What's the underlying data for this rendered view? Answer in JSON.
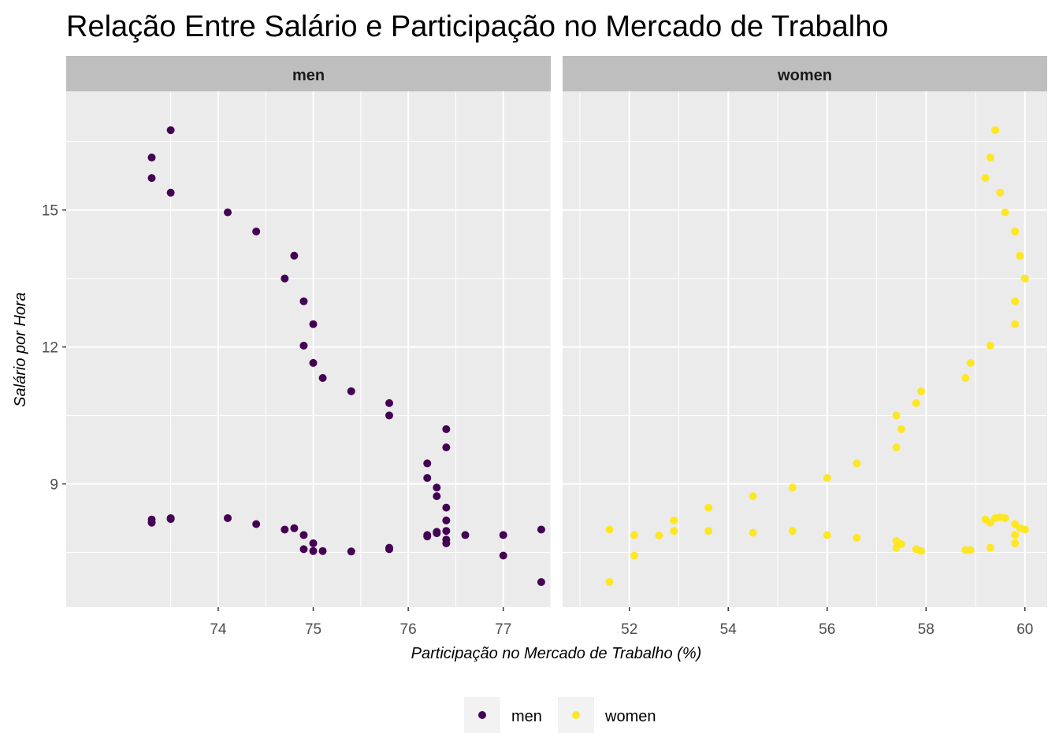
{
  "chart_data": {
    "type": "scatter",
    "title": "Relação Entre Salário e Participação no Mercado de Trabalho",
    "xlabel": "Participação no Mercado de Trabalho (%)",
    "ylabel": "Salário por Hora",
    "ylim": [
      6.3,
      17.6
    ],
    "yticks": [
      9,
      12,
      15
    ],
    "grid": true,
    "legend_position": "bottom",
    "legend": [
      {
        "label": "men",
        "color": "#440154"
      },
      {
        "label": "women",
        "color": "#FDE725"
      }
    ],
    "panels": [
      {
        "strip": "men",
        "color": "#440154",
        "xlim": [
          72.4,
          77.5
        ],
        "xticks": [
          74,
          75,
          76,
          77
        ],
        "points": [
          [
            73.3,
            16.15
          ],
          [
            73.5,
            16.75
          ],
          [
            73.3,
            15.7
          ],
          [
            73.5,
            15.38
          ],
          [
            74.1,
            14.95
          ],
          [
            74.4,
            14.53
          ],
          [
            74.8,
            14.0
          ],
          [
            74.7,
            13.5
          ],
          [
            74.9,
            13.0
          ],
          [
            75.0,
            12.5
          ],
          [
            74.9,
            12.03
          ],
          [
            75.0,
            11.65
          ],
          [
            75.1,
            11.32
          ],
          [
            75.4,
            11.03
          ],
          [
            75.8,
            10.77
          ],
          [
            75.8,
            10.5
          ],
          [
            76.4,
            10.2
          ],
          [
            76.4,
            9.8
          ],
          [
            76.2,
            9.45
          ],
          [
            76.2,
            9.13
          ],
          [
            76.3,
            8.92
          ],
          [
            76.3,
            8.73
          ],
          [
            76.4,
            8.48
          ],
          [
            76.4,
            8.2
          ],
          [
            73.3,
            8.22
          ],
          [
            73.3,
            8.15
          ],
          [
            73.5,
            8.25
          ],
          [
            73.5,
            8.23
          ],
          [
            74.1,
            8.25
          ],
          [
            74.4,
            8.12
          ],
          [
            74.7,
            8.0
          ],
          [
            74.8,
            8.03
          ],
          [
            74.9,
            7.88
          ],
          [
            75.0,
            7.7
          ],
          [
            74.9,
            7.57
          ],
          [
            75.0,
            7.53
          ],
          [
            75.1,
            7.53
          ],
          [
            75.4,
            7.52
          ],
          [
            75.8,
            7.6
          ],
          [
            75.8,
            7.57
          ],
          [
            76.2,
            7.88
          ],
          [
            76.2,
            7.85
          ],
          [
            76.3,
            7.95
          ],
          [
            76.3,
            7.92
          ],
          [
            76.4,
            7.97
          ],
          [
            76.4,
            7.78
          ],
          [
            76.4,
            7.7
          ],
          [
            76.6,
            7.88
          ],
          [
            77.0,
            7.88
          ],
          [
            77.0,
            7.43
          ],
          [
            77.4,
            8.0
          ],
          [
            77.4,
            6.85
          ]
        ]
      },
      {
        "strip": "women",
        "color": "#FDE725",
        "xlim": [
          50.65,
          60.45
        ],
        "xticks": [
          52,
          54,
          56,
          58,
          60
        ],
        "points": [
          [
            59.4,
            16.75
          ],
          [
            59.3,
            16.15
          ],
          [
            59.2,
            15.7
          ],
          [
            59.5,
            15.38
          ],
          [
            59.6,
            14.95
          ],
          [
            59.8,
            14.53
          ],
          [
            59.9,
            14.0
          ],
          [
            60.0,
            13.5
          ],
          [
            59.8,
            13.0
          ],
          [
            59.8,
            12.5
          ],
          [
            59.3,
            12.03
          ],
          [
            58.9,
            11.65
          ],
          [
            58.8,
            11.32
          ],
          [
            57.9,
            11.03
          ],
          [
            57.8,
            10.77
          ],
          [
            57.4,
            10.5
          ],
          [
            57.5,
            10.2
          ],
          [
            57.4,
            9.8
          ],
          [
            56.6,
            9.45
          ],
          [
            56.0,
            9.13
          ],
          [
            55.3,
            8.92
          ],
          [
            54.5,
            8.73
          ],
          [
            53.6,
            8.48
          ],
          [
            52.9,
            8.2
          ],
          [
            51.6,
            8.0
          ],
          [
            51.6,
            6.85
          ],
          [
            52.1,
            7.88
          ],
          [
            52.1,
            7.43
          ],
          [
            52.6,
            7.87
          ],
          [
            52.9,
            7.97
          ],
          [
            53.6,
            7.97
          ],
          [
            54.5,
            7.93
          ],
          [
            55.3,
            7.97
          ],
          [
            56.0,
            7.88
          ],
          [
            56.6,
            7.82
          ],
          [
            57.4,
            7.75
          ],
          [
            57.4,
            7.6
          ],
          [
            57.5,
            7.68
          ],
          [
            57.8,
            7.57
          ],
          [
            57.9,
            7.53
          ],
          [
            58.8,
            7.55
          ],
          [
            58.9,
            7.55
          ],
          [
            59.3,
            7.6
          ],
          [
            59.2,
            8.22
          ],
          [
            59.3,
            8.15
          ],
          [
            59.4,
            8.25
          ],
          [
            59.5,
            8.27
          ],
          [
            59.6,
            8.25
          ],
          [
            59.8,
            8.12
          ],
          [
            59.9,
            8.03
          ],
          [
            60.0,
            8.0
          ],
          [
            59.8,
            7.88
          ],
          [
            59.8,
            7.7
          ]
        ]
      }
    ]
  }
}
